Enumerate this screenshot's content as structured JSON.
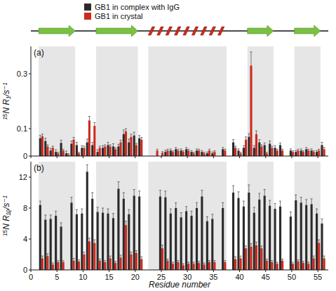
{
  "chart_data": [
    {
      "type": "bar",
      "panel_label": "(a)",
      "ylabel": "¹⁵N R₁/s⁻¹",
      "x": [
        1,
        2,
        3,
        4,
        5,
        6,
        7,
        8,
        9,
        10,
        11,
        12,
        13,
        14,
        15,
        16,
        17,
        18,
        19,
        20,
        21,
        22,
        23,
        24,
        25,
        26,
        27,
        28,
        29,
        30,
        31,
        32,
        33,
        34,
        35,
        36,
        37,
        38,
        39,
        40,
        41,
        42,
        43,
        44,
        45,
        46,
        47,
        48,
        49,
        50,
        51,
        52,
        53,
        54,
        55,
        56
      ],
      "xlim": [
        0,
        57
      ],
      "xticks": [
        0,
        5,
        10,
        15,
        20,
        25,
        30,
        35,
        40,
        45,
        50,
        55
      ],
      "ylim": [
        0,
        0.4
      ],
      "yticks": [
        0,
        0.1,
        0.3
      ],
      "tick_labels": "y",
      "legend": "top-left",
      "series": [
        {
          "name": "GB1 in complex with IgG",
          "color": "#2b2b2b",
          "values": [
            null,
            0.065,
            0.055,
            0.02,
            0.015,
            0.048,
            0.01,
            0.045,
            0.04,
            0.03,
            0.05,
            0.04,
            0.015,
            0.03,
            0.04,
            0.035,
            0.035,
            0.08,
            0.05,
            0.075,
            0.065,
            null,
            null,
            null,
            null,
            0.015,
            0.02,
            0.025,
            0.02,
            0.025,
            0.015,
            0.02,
            0.015,
            0.01,
            0.01,
            null,
            0.025,
            null,
            0.05,
            0.02,
            0.03,
            0.07,
            0.03,
            0.05,
            0.04,
            0.045,
            0.03,
            0.04,
            null,
            0.02,
            0.015,
            0.02,
            0.025,
            0.02,
            0.015,
            0.04
          ],
          "errors": [
            null,
            0.01,
            0.01,
            0.008,
            0.008,
            0.01,
            0.008,
            0.01,
            0.01,
            0.008,
            0.012,
            0.01,
            0.008,
            0.008,
            0.01,
            0.01,
            0.008,
            0.015,
            0.012,
            0.012,
            0.01,
            null,
            null,
            null,
            null,
            0.006,
            0.006,
            0.006,
            0.006,
            0.006,
            0.005,
            0.006,
            0.005,
            0.005,
            0.005,
            null,
            0.006,
            null,
            0.01,
            0.006,
            0.008,
            0.012,
            0.008,
            0.01,
            0.008,
            0.01,
            0.008,
            0.008,
            null,
            0.006,
            0.005,
            0.006,
            0.006,
            0.006,
            0.005,
            0.01
          ]
        },
        {
          "name": "GB1 in crystal",
          "color": "#cc2a1e",
          "values": [
            null,
            0.072,
            0.035,
            0.03,
            0.01,
            0.02,
            0.005,
            0.06,
            0.01,
            0.03,
            0.13,
            0.11,
            0.03,
            0.035,
            0.035,
            0.025,
            0.05,
            0.09,
            0.07,
            0.04,
            0.06,
            null,
            null,
            0.02,
            0.012,
            0.02,
            0.015,
            0.02,
            0.015,
            0.02,
            0.01,
            0.02,
            0.01,
            0.02,
            0.015,
            null,
            0.02,
            null,
            0.03,
            0.01,
            0.06,
            0.33,
            0.08,
            0.035,
            0.01,
            0.03,
            0.02,
            0.02,
            null,
            0.015,
            0.02,
            0.015,
            0.02,
            0.015,
            0.02,
            0.025
          ],
          "errors": [
            null,
            0.008,
            0.006,
            0.006,
            0.004,
            0.005,
            0.004,
            0.008,
            0.004,
            0.006,
            0.015,
            0.012,
            0.006,
            0.006,
            0.006,
            0.005,
            0.008,
            0.01,
            0.01,
            0.006,
            0.008,
            null,
            null,
            0.005,
            0.004,
            0.005,
            0.004,
            0.005,
            0.004,
            0.005,
            0.004,
            0.005,
            0.004,
            0.005,
            0.004,
            null,
            0.005,
            null,
            0.006,
            0.004,
            0.01,
            0.05,
            0.012,
            0.006,
            0.004,
            0.006,
            0.005,
            0.005,
            null,
            0.004,
            0.005,
            0.004,
            0.005,
            0.004,
            0.005,
            0.006
          ]
        }
      ]
    },
    {
      "type": "bar",
      "panel_label": "(b)",
      "ylabel": "¹⁵N R₁ᵨ/s⁻¹",
      "xlabel": "Residue number",
      "x": [
        1,
        2,
        3,
        4,
        5,
        6,
        7,
        8,
        9,
        10,
        11,
        12,
        13,
        14,
        15,
        16,
        17,
        18,
        19,
        20,
        21,
        22,
        23,
        24,
        25,
        26,
        27,
        28,
        29,
        30,
        31,
        32,
        33,
        34,
        35,
        36,
        37,
        38,
        39,
        40,
        41,
        42,
        43,
        44,
        45,
        46,
        47,
        48,
        49,
        50,
        51,
        52,
        53,
        54,
        55,
        56
      ],
      "xlim": [
        0,
        57
      ],
      "xticks": [
        0,
        5,
        10,
        15,
        20,
        25,
        30,
        35,
        40,
        45,
        50,
        55
      ],
      "ylim": [
        0,
        14
      ],
      "yticks": [
        0,
        4,
        8,
        12
      ],
      "series": [
        {
          "color": "#2b2b2b",
          "values": [
            null,
            8.4,
            6.5,
            6.6,
            7.0,
            5.6,
            null,
            8.7,
            7.2,
            7.3,
            12.7,
            9.2,
            7.5,
            7.4,
            7.3,
            6.7,
            10.5,
            9.2,
            7.2,
            9.6,
            9.5,
            null,
            null,
            null,
            9.5,
            9.4,
            7.3,
            8.0,
            6.8,
            7.6,
            7.0,
            8.0,
            9.5,
            6.3,
            6.6,
            null,
            8.0,
            null,
            10.0,
            9.3,
            8.2,
            10.0,
            7.4,
            9.1,
            9.6,
            8.3,
            7.9,
            8.2,
            null,
            6.9,
            9.0,
            8.7,
            8.4,
            8.5,
            7.3,
            6.0
          ],
          "errors": [
            null,
            0.5,
            0.6,
            0.5,
            0.6,
            0.5,
            null,
            0.7,
            0.6,
            0.6,
            0.9,
            0.8,
            0.6,
            0.6,
            0.6,
            0.6,
            0.9,
            0.8,
            0.6,
            0.8,
            0.7,
            null,
            null,
            null,
            0.8,
            0.8,
            0.6,
            0.7,
            0.6,
            0.6,
            0.6,
            0.7,
            0.8,
            0.6,
            0.6,
            null,
            0.7,
            null,
            0.9,
            0.8,
            0.7,
            1.0,
            0.7,
            0.8,
            0.8,
            0.7,
            0.7,
            0.7,
            null,
            0.6,
            0.7,
            0.7,
            0.7,
            0.7,
            0.6,
            0.6
          ]
        },
        {
          "color": "#cc2a1e",
          "values": [
            null,
            1.5,
            1.8,
            0.7,
            1.0,
            1.0,
            null,
            1.2,
            1.1,
            2.0,
            3.7,
            3.5,
            1.2,
            1.0,
            1.5,
            0.9,
            1.6,
            5.8,
            2.0,
            2.2,
            1.4,
            null,
            null,
            null,
            2.8,
            1.2,
            0.8,
            1.0,
            0.6,
            0.8,
            0.8,
            0.9,
            0.7,
            1.0,
            1.0,
            null,
            1.0,
            null,
            1.4,
            1.5,
            2.8,
            3.0,
            3.2,
            2.8,
            1.2,
            1.0,
            0.8,
            1.2,
            null,
            0.8,
            1.1,
            0.9,
            0.8,
            1.5,
            3.5,
            1.5
          ],
          "errors": [
            null,
            0.3,
            0.3,
            0.2,
            0.2,
            0.2,
            null,
            0.3,
            0.2,
            0.3,
            0.4,
            0.4,
            0.2,
            0.2,
            0.3,
            0.2,
            0.3,
            0.5,
            0.3,
            0.3,
            0.3,
            null,
            null,
            null,
            0.4,
            0.2,
            0.2,
            0.2,
            0.2,
            0.2,
            0.2,
            0.2,
            0.2,
            0.2,
            0.2,
            null,
            0.2,
            null,
            0.3,
            0.3,
            0.3,
            0.4,
            0.4,
            0.3,
            0.2,
            0.2,
            0.2,
            0.2,
            null,
            0.2,
            0.2,
            0.2,
            0.2,
            0.3,
            0.4,
            0.3
          ]
        }
      ]
    }
  ],
  "secondary_structure": [
    {
      "type": "strand",
      "start": 2,
      "end": 8
    },
    {
      "type": "strand",
      "start": 13,
      "end": 20
    },
    {
      "type": "helix",
      "start": 23,
      "end": 37
    },
    {
      "type": "strand",
      "start": 42,
      "end": 46
    },
    {
      "type": "strand",
      "start": 51,
      "end": 55
    }
  ]
}
